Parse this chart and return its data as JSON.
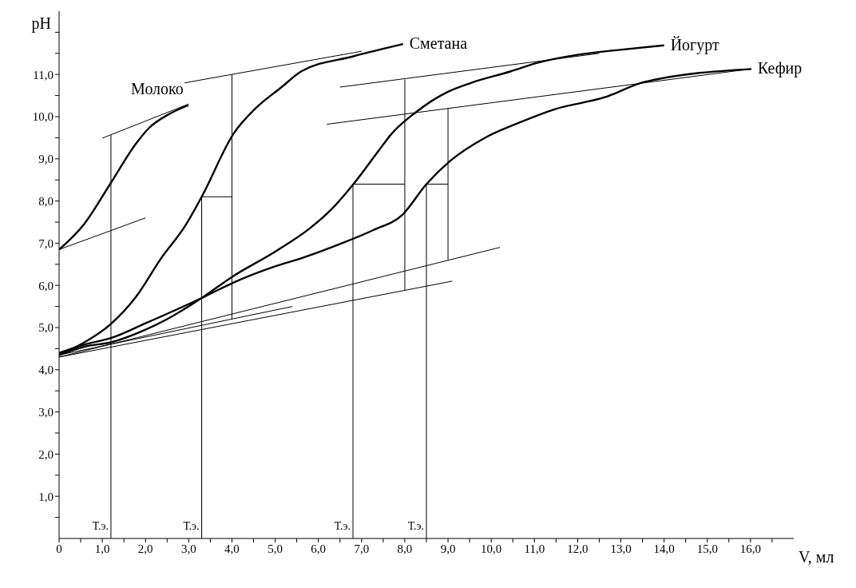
{
  "chart_data": {
    "type": "line",
    "xlabel": "V, мл",
    "ylabel": "pH",
    "xlim": [
      0,
      17
    ],
    "ylim": [
      0,
      12.5
    ],
    "xticks": [
      {
        "value": 0,
        "label": "0"
      },
      {
        "value": 0.5,
        "label": null
      },
      {
        "value": 1,
        "label": "1,0"
      },
      {
        "value": 1.5,
        "label": null
      },
      {
        "value": 2,
        "label": "2,0"
      },
      {
        "value": 2.5,
        "label": null
      },
      {
        "value": 3,
        "label": "3,0"
      },
      {
        "value": 3.5,
        "label": null
      },
      {
        "value": 4,
        "label": "4,0"
      },
      {
        "value": 4.5,
        "label": null
      },
      {
        "value": 5,
        "label": "5,0"
      },
      {
        "value": 5.5,
        "label": null
      },
      {
        "value": 6,
        "label": "6,0"
      },
      {
        "value": 6.5,
        "label": null
      },
      {
        "value": 7,
        "label": "7,0"
      },
      {
        "value": 7.5,
        "label": null
      },
      {
        "value": 8,
        "label": "8,0"
      },
      {
        "value": 8.5,
        "label": null
      },
      {
        "value": 9,
        "label": "9,0"
      },
      {
        "value": 9.5,
        "label": null
      },
      {
        "value": 10,
        "label": "10,0"
      },
      {
        "value": 10.5,
        "label": null
      },
      {
        "value": 11,
        "label": "11,0"
      },
      {
        "value": 11.5,
        "label": null
      },
      {
        "value": 12,
        "label": "12,0"
      },
      {
        "value": 12.5,
        "label": null
      },
      {
        "value": 13,
        "label": "13,0"
      },
      {
        "value": 13.5,
        "label": null
      },
      {
        "value": 14,
        "label": "14,0"
      },
      {
        "value": 14.5,
        "label": null
      },
      {
        "value": 15,
        "label": "15,0"
      },
      {
        "value": 15.5,
        "label": null
      },
      {
        "value": 16,
        "label": "16,0"
      },
      {
        "value": 16.5,
        "label": null
      }
    ],
    "yticks": [
      {
        "value": 0.5,
        "label": null
      },
      {
        "value": 1,
        "label": "1,0"
      },
      {
        "value": 1.5,
        "label": null
      },
      {
        "value": 2,
        "label": "2,0"
      },
      {
        "value": 2.5,
        "label": null
      },
      {
        "value": 3,
        "label": "3,0"
      },
      {
        "value": 3.5,
        "label": null
      },
      {
        "value": 4,
        "label": "4,0"
      },
      {
        "value": 4.5,
        "label": null
      },
      {
        "value": 5,
        "label": "5,0"
      },
      {
        "value": 5.5,
        "label": null
      },
      {
        "value": 6,
        "label": "6,0"
      },
      {
        "value": 6.5,
        "label": null
      },
      {
        "value": 7,
        "label": "7,0"
      },
      {
        "value": 7.5,
        "label": null
      },
      {
        "value": 8,
        "label": "8,0"
      },
      {
        "value": 8.5,
        "label": null
      },
      {
        "value": 9,
        "label": "9,0"
      },
      {
        "value": 9.5,
        "label": null
      },
      {
        "value": 10,
        "label": "10,0"
      },
      {
        "value": 10.5,
        "label": null
      },
      {
        "value": 11,
        "label": "11,0"
      },
      {
        "value": 11.5,
        "label": null
      },
      {
        "value": 12,
        "label": null
      }
    ],
    "grid": false,
    "legend": false,
    "marker": "none",
    "line_style": "solid",
    "series": [
      {
        "name": "Молоко",
        "color": "#000000",
        "x": [
          0,
          0.57,
          1.18,
          1.78,
          2.08,
          2.51,
          2.99
        ],
        "values": [
          6.85,
          7.44,
          8.4,
          9.36,
          9.73,
          10.04,
          10.27
        ]
      },
      {
        "name": "Сметана",
        "color": "#000000",
        "x": [
          0,
          0.57,
          1.18,
          1.78,
          2.36,
          2.93,
          3.3,
          4.04,
          4.55,
          5.15,
          5.6,
          6.81,
          7.96
        ],
        "values": [
          4.35,
          4.64,
          5.07,
          5.73,
          6.64,
          7.43,
          8.1,
          9.6,
          10.2,
          10.7,
          11.07,
          11.43,
          11.72
        ]
      },
      {
        "name": "Йогурт",
        "color": "#000000",
        "x": [
          0,
          0.6,
          1.2,
          2,
          2.5,
          3.3,
          4,
          5,
          5.8,
          6.3,
          6.81,
          7.4,
          7.7,
          8.25,
          8.98,
          9.53,
          10.44,
          11.05,
          12.02,
          12.93,
          14
        ],
        "values": [
          4.35,
          4.55,
          4.65,
          4.95,
          5.2,
          5.7,
          6.2,
          6.8,
          7.35,
          7.8,
          8.4,
          9.2,
          9.6,
          10.1,
          10.58,
          10.8,
          11.07,
          11.27,
          11.47,
          11.58,
          11.69
        ]
      },
      {
        "name": "Кефир",
        "color": "#000000",
        "x": [
          0,
          0.6,
          1.2,
          2,
          3.3,
          4,
          5,
          5.6,
          6.5,
          7.27,
          7.94,
          8.5,
          9.05,
          9.84,
          10.63,
          11.45,
          12.63,
          13.54,
          16.02
        ],
        "values": [
          4.4,
          4.6,
          4.75,
          5.1,
          5.7,
          6.05,
          6.45,
          6.64,
          6.98,
          7.31,
          7.67,
          8.4,
          8.95,
          9.49,
          9.85,
          10.17,
          10.46,
          10.82,
          11.13
        ]
      },
      {
        "color": "#000000",
        "x": [
          0,
          2
        ],
        "values": [
          6.85,
          7.6
        ]
      },
      {
        "color": "#000000",
        "x": [
          1,
          3
        ],
        "values": [
          9.49,
          10.3
        ]
      },
      {
        "color": "#000000",
        "x": [
          1.2,
          1.2
        ],
        "values": [
          0,
          9.57
        ]
      },
      {
        "color": "#000000",
        "x": [
          2.9,
          7
        ],
        "values": [
          10.8,
          11.55
        ]
      },
      {
        "color": "#000000",
        "x": [
          0,
          5.4
        ],
        "values": [
          4.35,
          5.5
        ]
      },
      {
        "color": "#000000",
        "x": [
          3.3,
          3.3,
          4
        ],
        "values": [
          0,
          8.1,
          8.1
        ]
      },
      {
        "color": "#000000",
        "x": [
          4,
          4
        ],
        "values": [
          5.2,
          11
        ]
      },
      {
        "color": "#000000",
        "x": [
          0,
          9.1
        ],
        "values": [
          4.3,
          6.1
        ]
      },
      {
        "color": "#000000",
        "x": [
          6.5,
          12.5
        ],
        "values": [
          10.7,
          11.5
        ]
      },
      {
        "color": "#000000",
        "x": [
          6.8,
          6.8,
          8
        ],
        "values": [
          0,
          8.4,
          8.4
        ]
      },
      {
        "color": "#000000",
        "x": [
          8,
          8
        ],
        "values": [
          5.88,
          10.88
        ]
      },
      {
        "color": "#000000",
        "x": [
          0,
          10.2
        ],
        "values": [
          4.3,
          6.9
        ]
      },
      {
        "color": "#000000",
        "x": [
          6.2,
          16
        ],
        "values": [
          9.82,
          11.13
        ]
      },
      {
        "color": "#000000",
        "x": [
          8.5,
          8.5,
          9
        ],
        "values": [
          0,
          8.4,
          8.4
        ]
      },
      {
        "color": "#000000",
        "x": [
          9,
          9
        ],
        "values": [
          6.6,
          10.2
        ]
      }
    ],
    "annotations": [
      {
        "text": "Т.э.",
        "x": 1.2,
        "y": 0.3
      },
      {
        "text": "Т.э.",
        "x": 3.3,
        "y": 0.3
      },
      {
        "text": "Т.э.",
        "x": 6.8,
        "y": 0.3
      },
      {
        "text": "Т.э.",
        "x": 8.5,
        "y": 0.3
      }
    ]
  }
}
